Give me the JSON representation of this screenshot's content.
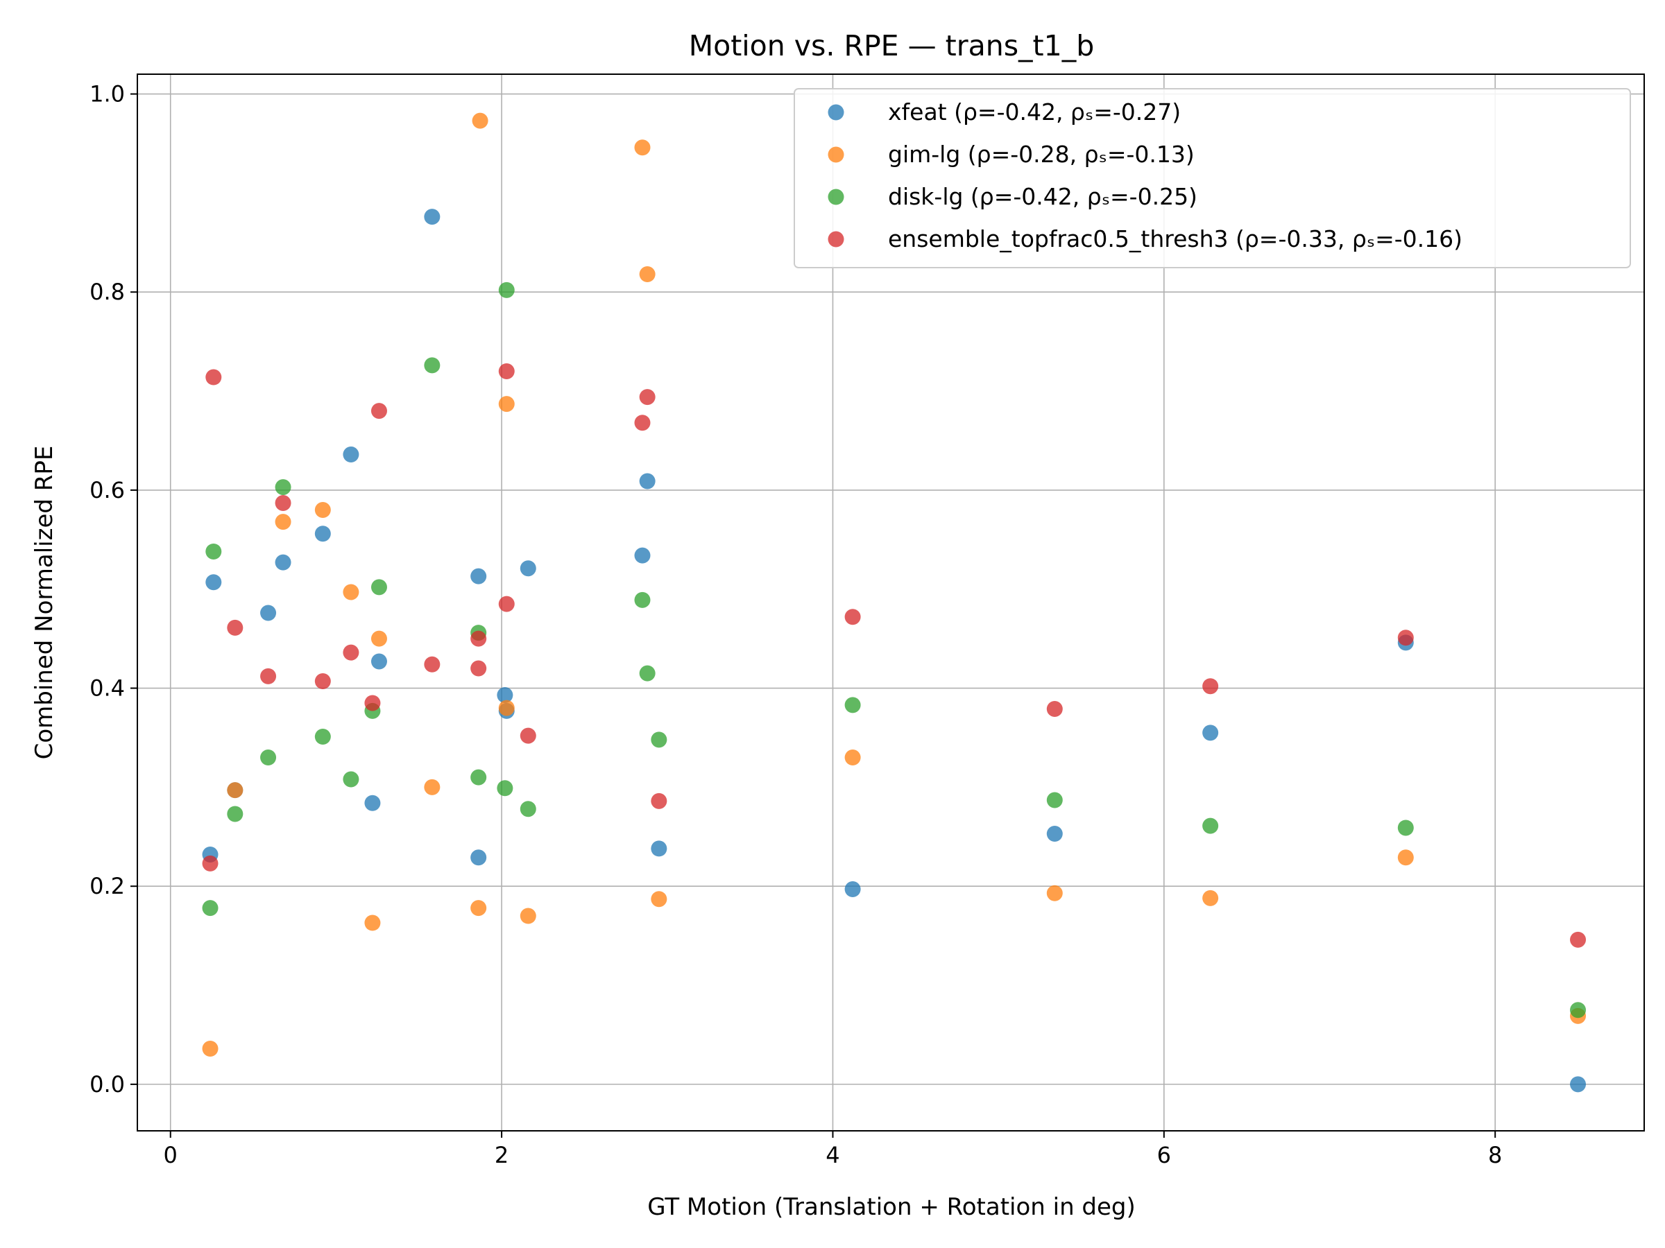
{
  "chart_data": {
    "type": "scatter",
    "title": "Motion vs. RPE — trans_t1_b",
    "xlabel": "GT Motion (Translation + Rotation in deg)",
    "ylabel": "Combined Normalized RPE",
    "xlim": [
      -0.2,
      8.9
    ],
    "ylim": [
      -0.047,
      1.02
    ],
    "xticks": [
      0,
      2,
      4,
      6,
      8
    ],
    "yticks": [
      0.0,
      0.2,
      0.4,
      0.6,
      0.8,
      1.0
    ],
    "xtick_labels": [
      "0",
      "2",
      "4",
      "6",
      "8"
    ],
    "ytick_labels": [
      "0.0",
      "0.2",
      "0.4",
      "0.6",
      "0.8",
      "1.0"
    ],
    "grid": true,
    "legend_position": "top-right",
    "series": [
      {
        "name": "xfeat (ρ=-0.42, ρₛ=-0.27)",
        "color": "#1f77b4",
        "x": [
          0.24,
          0.26,
          0.39,
          0.59,
          0.68,
          0.92,
          1.09,
          1.22,
          1.26,
          1.58,
          1.86,
          1.86,
          2.02,
          2.03,
          2.16,
          2.85,
          2.88,
          2.95,
          4.12,
          5.34,
          6.28,
          7.46,
          8.5
        ],
        "y": [
          0.232,
          0.507,
          0.297,
          0.476,
          0.527,
          0.556,
          0.636,
          0.284,
          0.427,
          0.876,
          0.229,
          0.513,
          0.393,
          0.377,
          0.521,
          0.534,
          0.609,
          0.238,
          0.197,
          0.253,
          0.355,
          0.446,
          0.0
        ]
      },
      {
        "name": "gim-lg (ρ=-0.28, ρₛ=-0.13)",
        "color": "#ff7f0e",
        "x": [
          0.24,
          0.39,
          0.68,
          0.92,
          1.09,
          1.22,
          1.26,
          1.58,
          1.86,
          1.87,
          2.03,
          2.03,
          2.16,
          2.85,
          2.88,
          2.95,
          4.12,
          5.34,
          6.28,
          7.46,
          8.5
        ],
        "y": [
          0.036,
          0.297,
          0.568,
          0.58,
          0.497,
          0.163,
          0.45,
          0.3,
          0.178,
          0.973,
          0.687,
          0.38,
          0.17,
          0.946,
          0.818,
          0.187,
          0.33,
          0.193,
          0.188,
          0.229,
          0.069
        ]
      },
      {
        "name": "disk-lg (ρ=-0.42, ρₛ=-0.25)",
        "color": "#2ca02c",
        "x": [
          0.24,
          0.26,
          0.39,
          0.59,
          0.68,
          0.92,
          1.09,
          1.22,
          1.26,
          1.58,
          1.86,
          1.86,
          2.02,
          2.03,
          2.16,
          2.85,
          2.88,
          2.95,
          4.12,
          5.34,
          6.28,
          7.46,
          8.5
        ],
        "y": [
          0.178,
          0.538,
          0.273,
          0.33,
          0.603,
          0.351,
          0.308,
          0.377,
          0.502,
          0.726,
          0.31,
          0.456,
          0.299,
          0.802,
          0.278,
          0.489,
          0.415,
          0.348,
          0.383,
          0.287,
          0.261,
          0.259,
          0.075
        ]
      },
      {
        "name": "ensemble_topfrac0.5_thresh3 (ρ=-0.33, ρₛ=-0.16)",
        "color": "#d62728",
        "x": [
          0.24,
          0.26,
          0.39,
          0.59,
          0.68,
          0.92,
          1.09,
          1.22,
          1.26,
          1.58,
          1.86,
          1.86,
          2.03,
          2.03,
          2.16,
          2.85,
          2.88,
          2.95,
          4.12,
          5.34,
          6.28,
          7.46,
          8.5
        ],
        "y": [
          0.223,
          0.714,
          0.461,
          0.412,
          0.587,
          0.407,
          0.436,
          0.385,
          0.68,
          0.424,
          0.42,
          0.45,
          0.72,
          0.485,
          0.352,
          0.668,
          0.694,
          0.286,
          0.472,
          0.379,
          0.402,
          0.451,
          0.146
        ]
      }
    ]
  }
}
